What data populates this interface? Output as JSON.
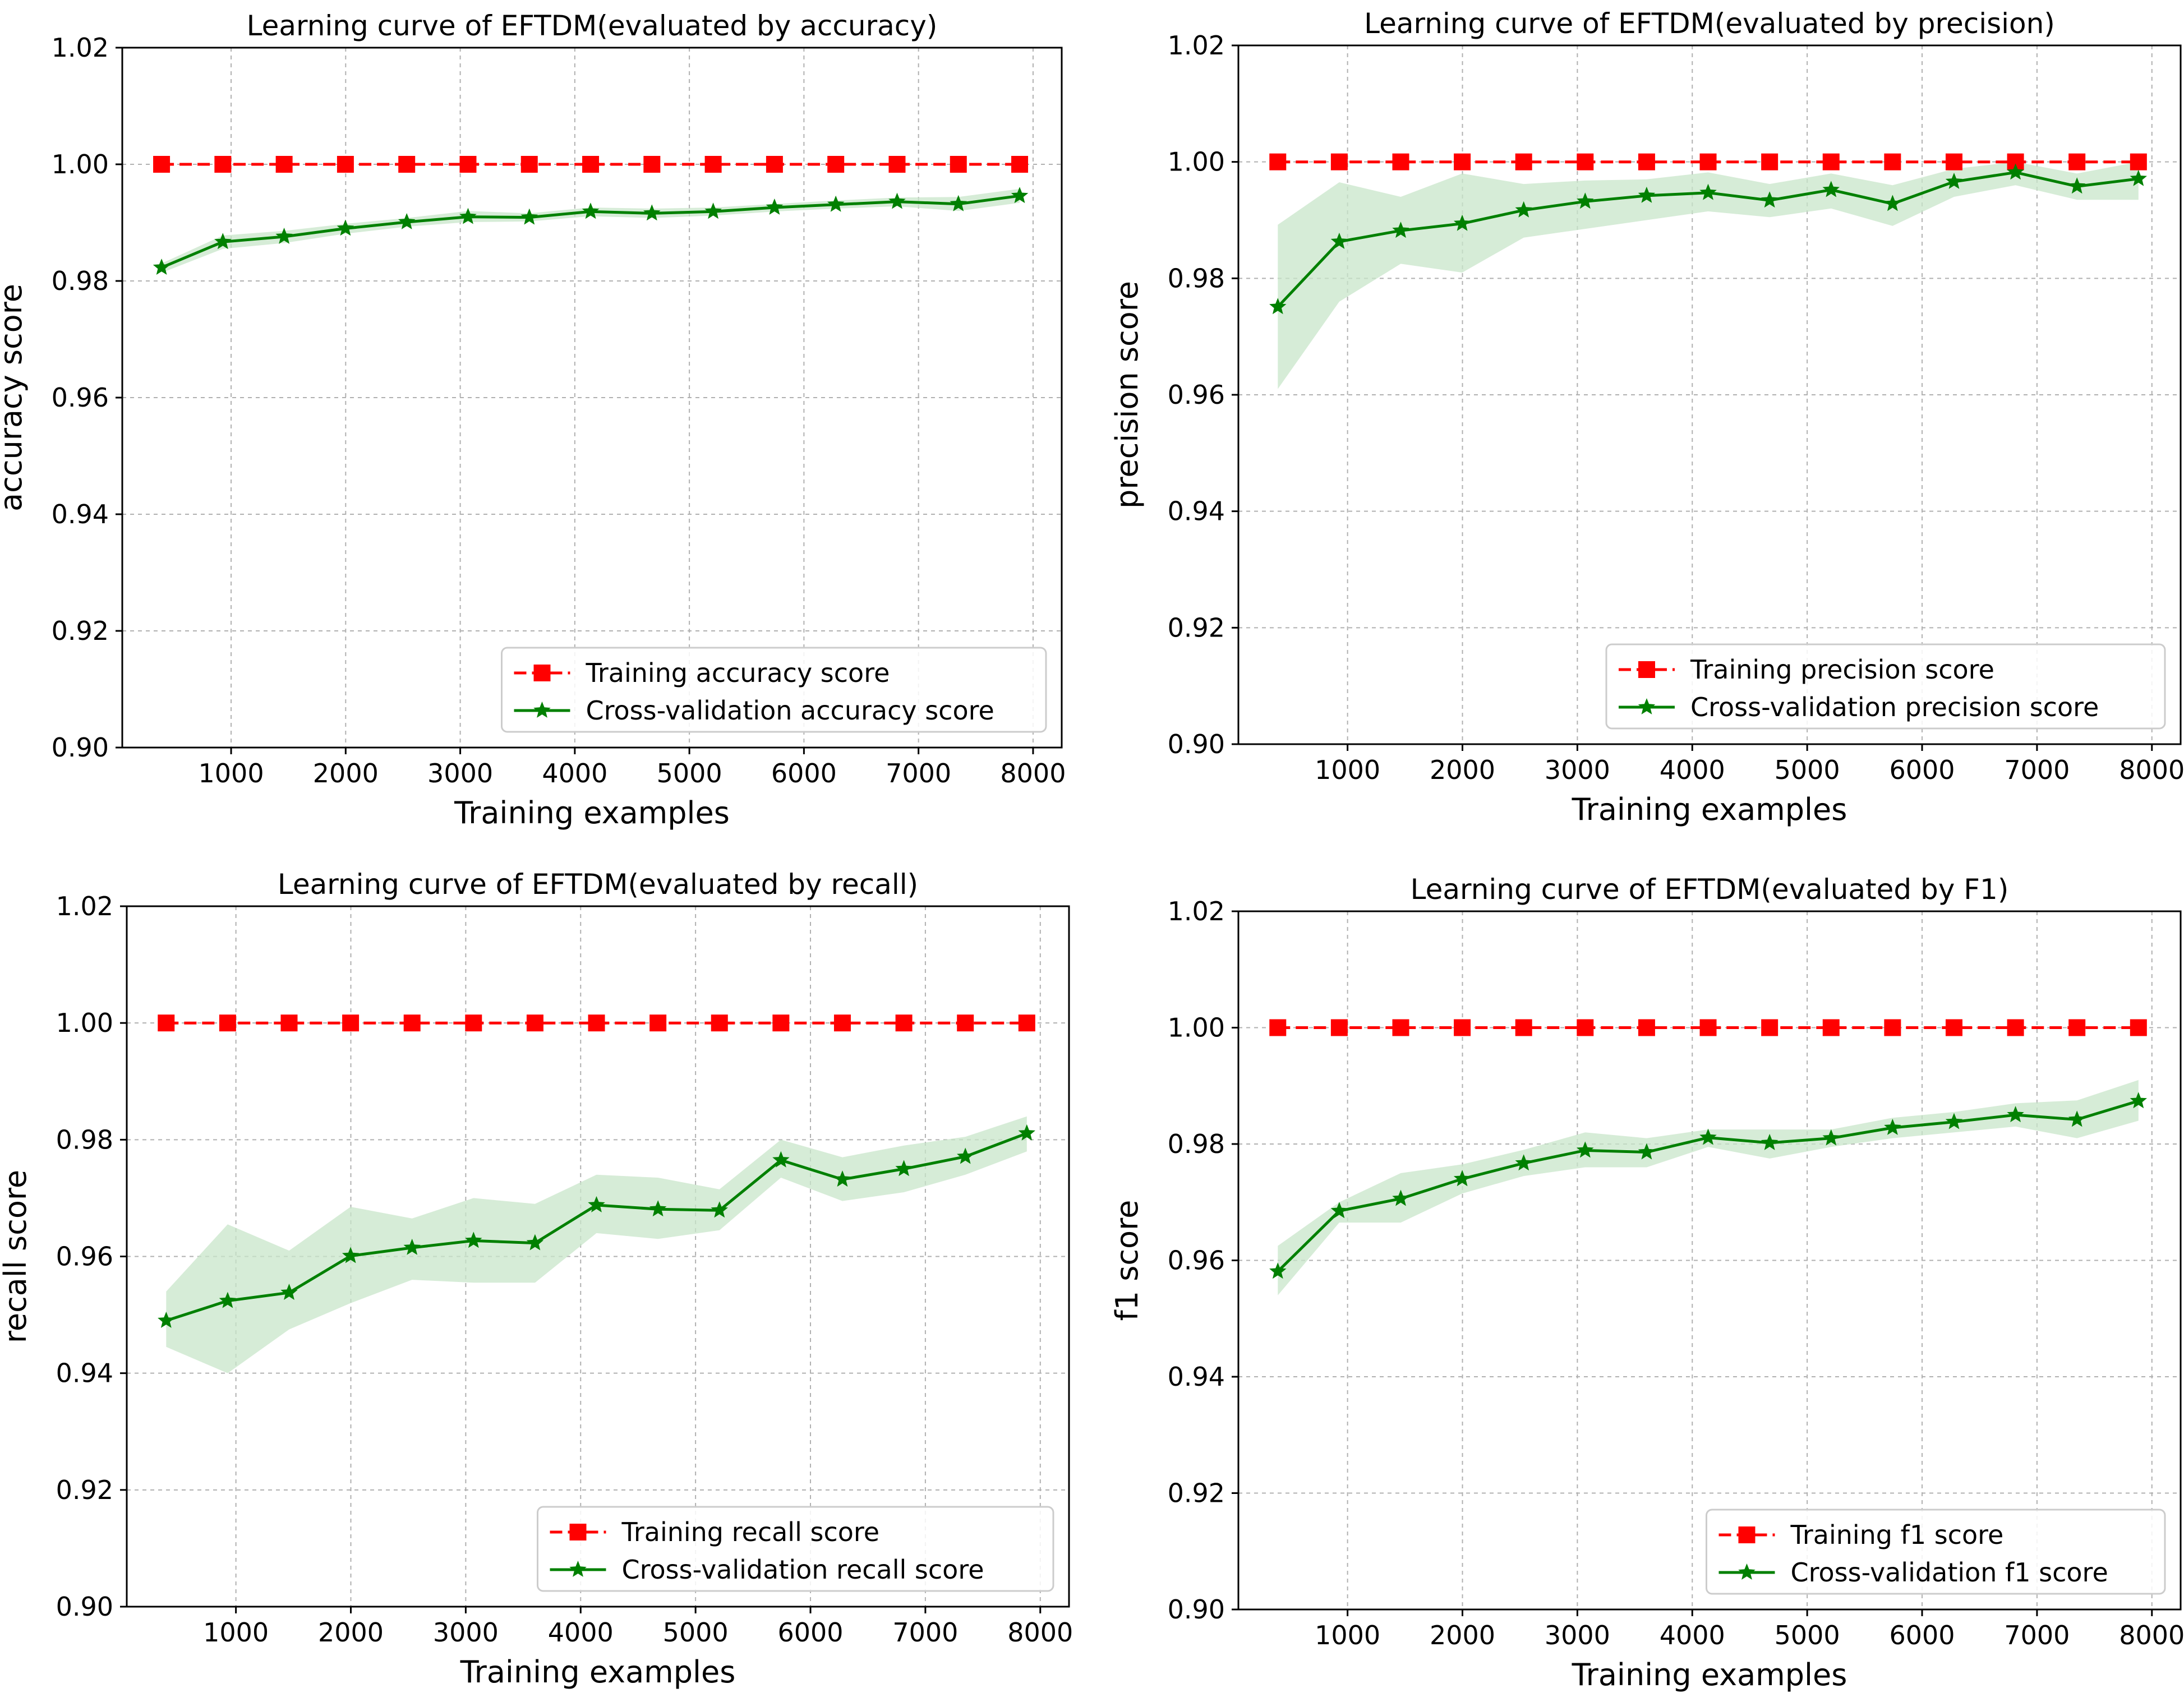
{
  "colors": {
    "training": "#ff0000",
    "cv_line": "#008000",
    "cv_band": "#c8e6c9",
    "grid": "#b0b0b0",
    "frame": "#000000"
  },
  "marker_icons": {
    "training": "square-marker-icon",
    "cross_validation": "star-marker-icon"
  },
  "chart_data": [
    {
      "type": "line",
      "title": "Learning curve of EFTDM(evaluated by accuracy)",
      "xlabel": "Training examples",
      "ylabel": "accuracy score",
      "xlim": [
        50,
        8250
      ],
      "ylim": [
        0.9,
        1.02
      ],
      "xticks": [
        1000,
        2000,
        3000,
        4000,
        5000,
        6000,
        7000,
        8000
      ],
      "yticks": [
        "0.90",
        "0.92",
        "0.94",
        "0.96",
        "0.98",
        "1.00",
        "1.02"
      ],
      "grid": true,
      "legend_position": "lower-right",
      "x": [
        393,
        928,
        1463,
        1998,
        2533,
        3068,
        3603,
        4138,
        4673,
        5208,
        5743,
        6278,
        6813,
        7348,
        7883
      ],
      "series": [
        {
          "name": "Training accuracy score",
          "style": "dashed",
          "marker": "square",
          "values": [
            1.0,
            1.0,
            1.0,
            1.0,
            1.0,
            1.0,
            1.0,
            1.0,
            1.0,
            1.0,
            1.0,
            1.0,
            1.0,
            1.0,
            1.0
          ]
        },
        {
          "name": "Cross-validation accuracy score",
          "style": "solid",
          "marker": "star",
          "values": [
            0.9823,
            0.9867,
            0.9876,
            0.989,
            0.9901,
            0.991,
            0.9909,
            0.9919,
            0.9916,
            0.9919,
            0.9926,
            0.9931,
            0.9936,
            0.9932,
            0.9946
          ],
          "band_upper": [
            0.983,
            0.9878,
            0.9886,
            0.9898,
            0.9908,
            0.992,
            0.9916,
            0.9926,
            0.9924,
            0.9926,
            0.9932,
            0.9938,
            0.9943,
            0.9944,
            0.9958
          ],
          "band_lower": [
            0.9814,
            0.9855,
            0.9865,
            0.9881,
            0.9893,
            0.9901,
            0.9902,
            0.9911,
            0.9908,
            0.9912,
            0.9919,
            0.9924,
            0.9928,
            0.992,
            0.9934
          ]
        }
      ]
    },
    {
      "type": "line",
      "title": "Learning curve of EFTDM(evaluated by precision)",
      "xlabel": "Training examples",
      "ylabel": "precision score",
      "xlim": [
        50,
        8250
      ],
      "ylim": [
        0.9,
        1.02
      ],
      "xticks": [
        1000,
        2000,
        3000,
        4000,
        5000,
        6000,
        7000,
        8000
      ],
      "yticks": [
        "0.90",
        "0.92",
        "0.94",
        "0.96",
        "0.98",
        "1.00",
        "1.02"
      ],
      "grid": true,
      "legend_position": "lower-right",
      "x": [
        393,
        928,
        1463,
        1998,
        2533,
        3068,
        3603,
        4138,
        4673,
        5208,
        5743,
        6278,
        6813,
        7348,
        7883
      ],
      "series": [
        {
          "name": "Training precision score",
          "style": "dashed",
          "marker": "square",
          "values": [
            1.0,
            1.0,
            1.0,
            1.0,
            1.0,
            1.0,
            1.0,
            1.0,
            1.0,
            1.0,
            1.0,
            1.0,
            1.0,
            1.0,
            1.0
          ]
        },
        {
          "name": "Cross-validation precision score",
          "style": "solid",
          "marker": "star",
          "values": [
            0.9751,
            0.9863,
            0.9882,
            0.9894,
            0.9917,
            0.9932,
            0.9942,
            0.9947,
            0.9934,
            0.9952,
            0.9928,
            0.9966,
            0.9982,
            0.9958,
            0.9971
          ],
          "band_upper": [
            0.9892,
            0.9965,
            0.994,
            0.998,
            0.9962,
            0.9968,
            0.997,
            0.9982,
            0.9962,
            0.998,
            0.996,
            0.9988,
            1.0,
            0.998,
            1.0
          ],
          "band_lower": [
            0.961,
            0.976,
            0.9825,
            0.981,
            0.987,
            0.9885,
            0.99,
            0.9915,
            0.9905,
            0.992,
            0.989,
            0.994,
            0.996,
            0.9935,
            0.9935
          ]
        }
      ]
    },
    {
      "type": "line",
      "title": "Learning curve of EFTDM(evaluated by recall)",
      "xlabel": "Training examples",
      "ylabel": "recall score",
      "xlim": [
        50,
        8250
      ],
      "ylim": [
        0.9,
        1.02
      ],
      "xticks": [
        1000,
        2000,
        3000,
        4000,
        5000,
        6000,
        7000,
        8000
      ],
      "yticks": [
        "0.90",
        "0.92",
        "0.94",
        "0.96",
        "0.98",
        "1.00",
        "1.02"
      ],
      "grid": true,
      "legend_position": "lower-right",
      "x": [
        393,
        928,
        1463,
        1998,
        2533,
        3068,
        3603,
        4138,
        4673,
        5208,
        5743,
        6278,
        6813,
        7348,
        7883
      ],
      "series": [
        {
          "name": "Training recall score",
          "style": "dashed",
          "marker": "square",
          "values": [
            1.0,
            1.0,
            1.0,
            1.0,
            1.0,
            1.0,
            1.0,
            1.0,
            1.0,
            1.0,
            1.0,
            1.0,
            1.0,
            1.0,
            1.0
          ]
        },
        {
          "name": "Cross-validation recall score",
          "style": "solid",
          "marker": "star",
          "values": [
            0.949,
            0.9524,
            0.9538,
            0.9601,
            0.9615,
            0.9627,
            0.9623,
            0.9688,
            0.9681,
            0.9679,
            0.9765,
            0.9732,
            0.975,
            0.9771,
            0.9811
          ],
          "band_upper": [
            0.954,
            0.9655,
            0.961,
            0.9685,
            0.9665,
            0.97,
            0.969,
            0.974,
            0.9735,
            0.9715,
            0.98,
            0.977,
            0.979,
            0.9805,
            0.984
          ],
          "band_lower": [
            0.9445,
            0.94,
            0.9475,
            0.952,
            0.956,
            0.9555,
            0.9555,
            0.964,
            0.963,
            0.9645,
            0.9735,
            0.9695,
            0.971,
            0.974,
            0.978
          ]
        }
      ]
    },
    {
      "type": "line",
      "title": "Learning curve of EFTDM(evaluated by F1)",
      "xlabel": "Training examples",
      "ylabel": "f1 score",
      "xlim": [
        50,
        8250
      ],
      "ylim": [
        0.9,
        1.02
      ],
      "xticks": [
        1000,
        2000,
        3000,
        4000,
        5000,
        6000,
        7000,
        8000
      ],
      "yticks": [
        "0.90",
        "0.92",
        "0.94",
        "0.96",
        "0.98",
        "1.00",
        "1.02"
      ],
      "grid": true,
      "legend_position": "lower-right",
      "x": [
        393,
        928,
        1463,
        1998,
        2533,
        3068,
        3603,
        4138,
        4673,
        5208,
        5743,
        6278,
        6813,
        7348,
        7883
      ],
      "series": [
        {
          "name": "Training f1 score",
          "style": "dashed",
          "marker": "square",
          "values": [
            1.0,
            1.0,
            1.0,
            1.0,
            1.0,
            1.0,
            1.0,
            1.0,
            1.0,
            1.0,
            1.0,
            1.0,
            1.0,
            1.0,
            1.0
          ]
        },
        {
          "name": "Cross-validation f1 score",
          "style": "solid",
          "marker": "star",
          "values": [
            0.9581,
            0.9685,
            0.9706,
            0.974,
            0.9767,
            0.9789,
            0.9786,
            0.9811,
            0.9802,
            0.981,
            0.9828,
            0.9838,
            0.985,
            0.9842,
            0.9874
          ],
          "band_upper": [
            0.9625,
            0.97,
            0.975,
            0.9765,
            0.979,
            0.982,
            0.981,
            0.9825,
            0.9825,
            0.9825,
            0.9845,
            0.9855,
            0.987,
            0.9875,
            0.991
          ],
          "band_lower": [
            0.954,
            0.9665,
            0.9665,
            0.9715,
            0.9745,
            0.976,
            0.976,
            0.9795,
            0.9775,
            0.9795,
            0.981,
            0.982,
            0.983,
            0.981,
            0.984
          ]
        }
      ]
    }
  ]
}
